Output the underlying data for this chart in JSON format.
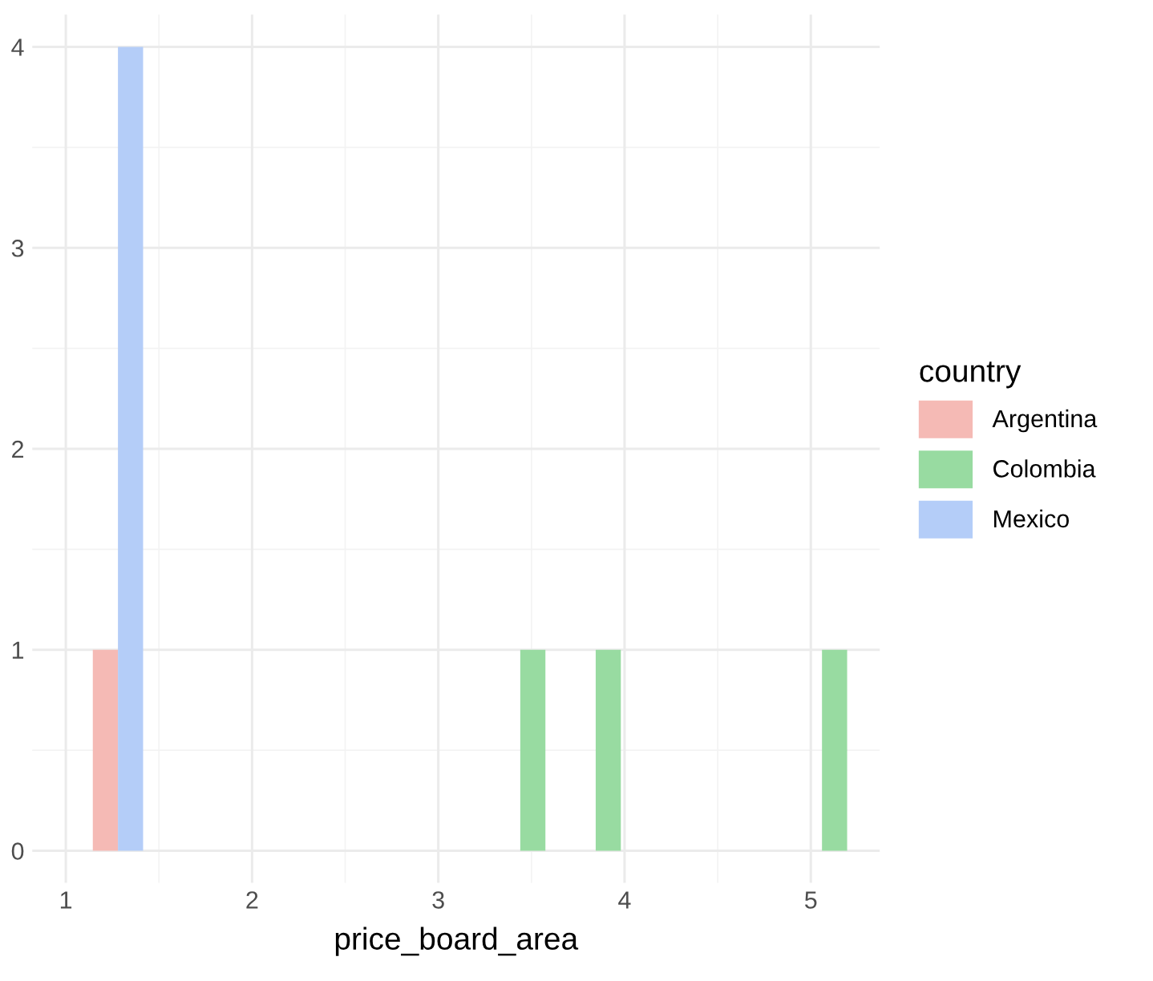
{
  "chart_data": {
    "type": "histogram",
    "xlabel": "price_board_area",
    "legend_title": "country",
    "bins": [
      1.145,
      1.28,
      1.415,
      1.55,
      1.685,
      1.82,
      1.955,
      2.09,
      2.225,
      2.36,
      2.495,
      2.63,
      2.765,
      2.9,
      3.035,
      3.17,
      3.305,
      3.44,
      3.575,
      3.71,
      3.845,
      3.98,
      4.115,
      4.25,
      4.385,
      4.52,
      4.655,
      4.79,
      4.925,
      5.06,
      5.195
    ],
    "series": [
      {
        "name": "Argentina",
        "color": "#f5bab5",
        "values": [
          1,
          0,
          0,
          0,
          0,
          0,
          0,
          0,
          0,
          0,
          0,
          0,
          0,
          0,
          0,
          0,
          0,
          0,
          0,
          0,
          0,
          0,
          0,
          0,
          0,
          0,
          0,
          0,
          0,
          0
        ]
      },
      {
        "name": "Colombia",
        "color": "#98dba1",
        "values": [
          0,
          0,
          0,
          0,
          0,
          0,
          0,
          0,
          0,
          0,
          0,
          0,
          0,
          0,
          0,
          0,
          0,
          1,
          0,
          0,
          1,
          0,
          0,
          0,
          0,
          0,
          0,
          0,
          0,
          1
        ]
      },
      {
        "name": "Mexico",
        "color": "#b4cdf8",
        "values": [
          0,
          4,
          0,
          0,
          0,
          0,
          0,
          0,
          0,
          0,
          0,
          0,
          0,
          0,
          0,
          0,
          0,
          0,
          0,
          0,
          0,
          0,
          0,
          0,
          0,
          0,
          0,
          0,
          0,
          0
        ]
      }
    ],
    "xlim": [
      0.82,
      5.37
    ],
    "ylim": [
      -0.16,
      4.16
    ],
    "xticks": [
      1,
      2,
      3,
      4,
      5
    ],
    "yticks": [
      0,
      1,
      2,
      3,
      4
    ],
    "grid": true,
    "legend": "right"
  }
}
